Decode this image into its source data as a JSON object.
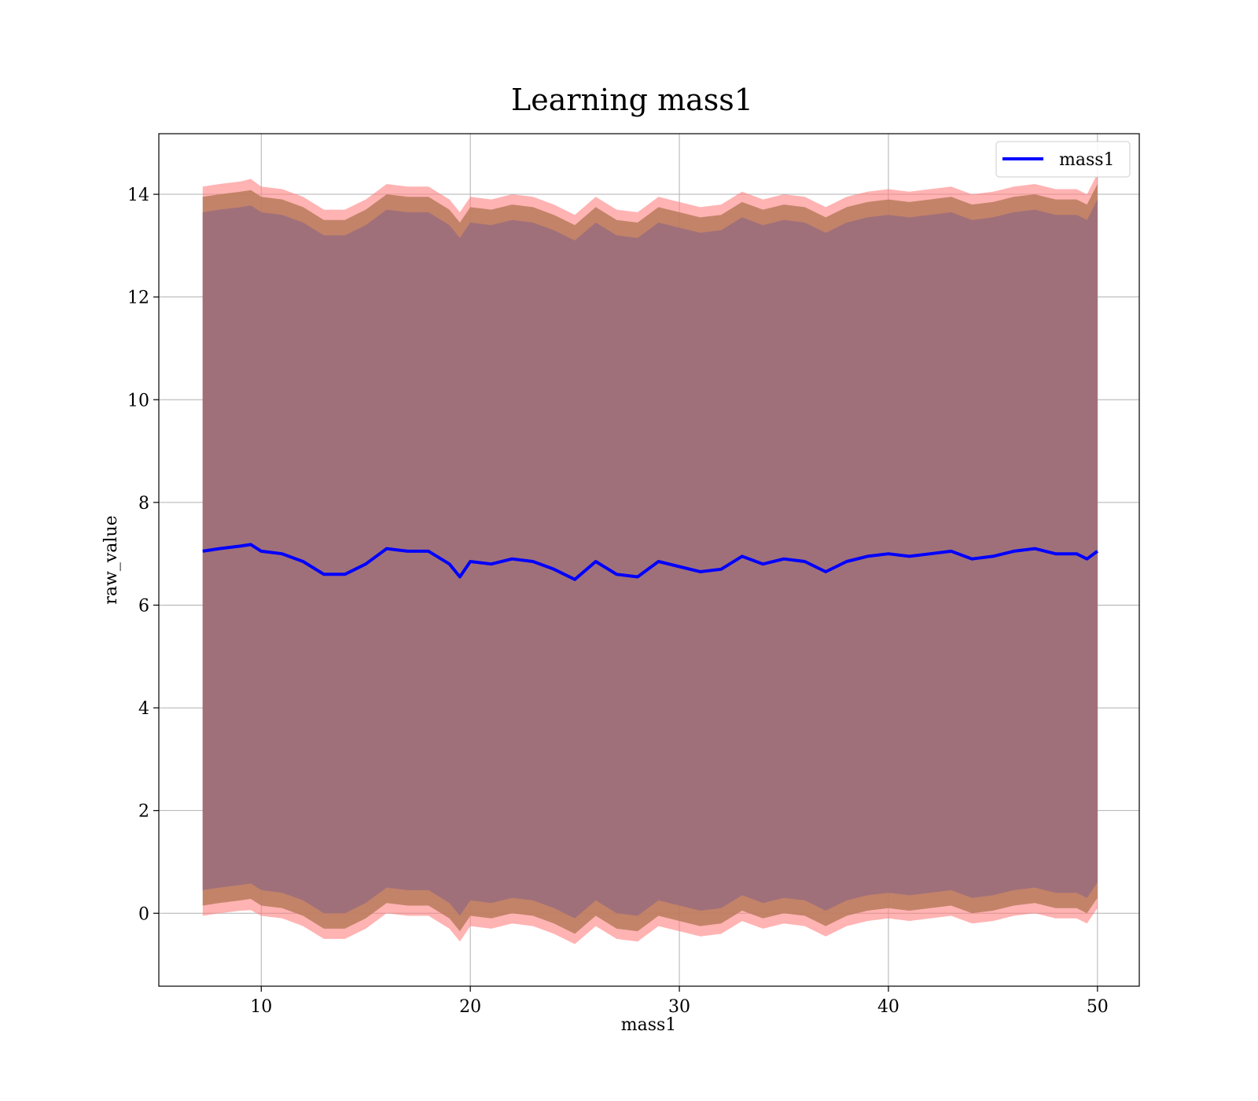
{
  "chart_data": {
    "type": "line",
    "title": "Learning mass1",
    "xlabel": "mass1",
    "ylabel": "raw_value",
    "xlim": [
      5.1,
      52.0
    ],
    "ylim": [
      -1.42,
      15.18
    ],
    "xticks": [
      10,
      20,
      30,
      40,
      50
    ],
    "yticks": [
      0,
      2,
      4,
      6,
      8,
      10,
      12,
      14
    ],
    "grid": true,
    "legend": {
      "position": "top-right",
      "entries": [
        "mass1"
      ]
    },
    "colors": {
      "line": "#0000ff",
      "outer_band": "#ff8080",
      "middle_band": "#b87a5a",
      "inner_band": "#a0707a"
    },
    "series": [
      {
        "name": "mass1",
        "x": [
          7.2,
          8.0,
          9.0,
          9.5,
          10.0,
          11.0,
          12.0,
          13.0,
          14.0,
          15.0,
          16.0,
          17.0,
          18.0,
          19.0,
          19.5,
          20.0,
          21.0,
          22.0,
          23.0,
          24.0,
          25.0,
          26.0,
          27.0,
          28.0,
          29.0,
          30.0,
          31.0,
          32.0,
          33.0,
          34.0,
          35.0,
          36.0,
          37.0,
          38.0,
          39.0,
          40.0,
          41.0,
          42.0,
          43.0,
          44.0,
          45.0,
          46.0,
          47.0,
          48.0,
          49.0,
          49.5,
          50.0
        ],
        "mean": [
          7.05,
          7.1,
          7.15,
          7.18,
          7.05,
          7.0,
          6.85,
          6.6,
          6.6,
          6.8,
          7.1,
          7.05,
          7.05,
          6.8,
          6.55,
          6.85,
          6.8,
          6.9,
          6.85,
          6.7,
          6.5,
          6.85,
          6.6,
          6.55,
          6.85,
          6.75,
          6.65,
          6.7,
          6.95,
          6.8,
          6.9,
          6.85,
          6.65,
          6.85,
          6.95,
          7.0,
          6.95,
          7.0,
          7.05,
          6.9,
          6.95,
          7.05,
          7.1,
          7.0,
          7.0,
          6.9,
          7.05
        ],
        "outer_upper": [
          14.15,
          14.2,
          14.25,
          14.3,
          14.15,
          14.1,
          13.95,
          13.7,
          13.7,
          13.9,
          14.2,
          14.15,
          14.15,
          13.9,
          13.65,
          13.95,
          13.9,
          14.0,
          13.95,
          13.8,
          13.6,
          13.95,
          13.7,
          13.65,
          13.95,
          13.85,
          13.75,
          13.8,
          14.05,
          13.9,
          14.0,
          13.95,
          13.75,
          13.95,
          14.05,
          14.1,
          14.05,
          14.1,
          14.15,
          14.0,
          14.05,
          14.15,
          14.2,
          14.1,
          14.1,
          14.0,
          14.4
        ],
        "outer_lower": [
          -0.05,
          0.0,
          0.05,
          0.06,
          -0.05,
          -0.1,
          -0.25,
          -0.5,
          -0.5,
          -0.3,
          0.0,
          -0.05,
          -0.05,
          -0.3,
          -0.55,
          -0.25,
          -0.3,
          -0.2,
          -0.25,
          -0.4,
          -0.6,
          -0.25,
          -0.5,
          -0.55,
          -0.25,
          -0.35,
          -0.45,
          -0.4,
          -0.15,
          -0.3,
          -0.2,
          -0.25,
          -0.45,
          -0.25,
          -0.15,
          -0.1,
          -0.15,
          -0.1,
          -0.05,
          -0.2,
          -0.15,
          -0.05,
          0.0,
          -0.1,
          -0.1,
          -0.2,
          0.1
        ],
        "middle_upper": [
          13.95,
          14.0,
          14.05,
          14.08,
          13.95,
          13.9,
          13.75,
          13.5,
          13.5,
          13.7,
          14.0,
          13.95,
          13.95,
          13.7,
          13.45,
          13.75,
          13.7,
          13.8,
          13.75,
          13.6,
          13.4,
          13.75,
          13.5,
          13.45,
          13.75,
          13.65,
          13.55,
          13.6,
          13.85,
          13.7,
          13.8,
          13.75,
          13.55,
          13.75,
          13.85,
          13.9,
          13.85,
          13.9,
          13.95,
          13.8,
          13.85,
          13.95,
          14.0,
          13.9,
          13.9,
          13.8,
          14.2
        ],
        "middle_lower": [
          0.15,
          0.2,
          0.25,
          0.28,
          0.15,
          0.1,
          -0.05,
          -0.3,
          -0.3,
          -0.1,
          0.2,
          0.15,
          0.15,
          -0.1,
          -0.35,
          -0.05,
          -0.1,
          0.0,
          -0.05,
          -0.2,
          -0.4,
          -0.05,
          -0.3,
          -0.35,
          -0.05,
          -0.15,
          -0.25,
          -0.2,
          0.05,
          -0.1,
          0.0,
          -0.05,
          -0.25,
          -0.05,
          0.05,
          0.1,
          0.05,
          0.1,
          0.15,
          0.0,
          0.05,
          0.15,
          0.2,
          0.1,
          0.1,
          0.0,
          0.3
        ],
        "inner_upper": [
          13.65,
          13.7,
          13.75,
          13.78,
          13.65,
          13.6,
          13.45,
          13.2,
          13.2,
          13.4,
          13.7,
          13.65,
          13.65,
          13.4,
          13.15,
          13.45,
          13.4,
          13.5,
          13.45,
          13.3,
          13.1,
          13.45,
          13.2,
          13.15,
          13.45,
          13.35,
          13.25,
          13.3,
          13.55,
          13.4,
          13.5,
          13.45,
          13.25,
          13.45,
          13.55,
          13.6,
          13.55,
          13.6,
          13.65,
          13.5,
          13.55,
          13.65,
          13.7,
          13.6,
          13.6,
          13.5,
          13.9
        ],
        "inner_lower": [
          0.45,
          0.5,
          0.55,
          0.58,
          0.45,
          0.4,
          0.25,
          0.0,
          0.0,
          0.2,
          0.5,
          0.45,
          0.45,
          0.2,
          -0.05,
          0.25,
          0.2,
          0.3,
          0.25,
          0.1,
          -0.1,
          0.25,
          0.0,
          -0.05,
          0.25,
          0.15,
          0.05,
          0.1,
          0.35,
          0.2,
          0.3,
          0.25,
          0.05,
          0.25,
          0.35,
          0.4,
          0.35,
          0.4,
          0.45,
          0.3,
          0.35,
          0.45,
          0.5,
          0.4,
          0.4,
          0.3,
          0.6
        ]
      }
    ]
  }
}
